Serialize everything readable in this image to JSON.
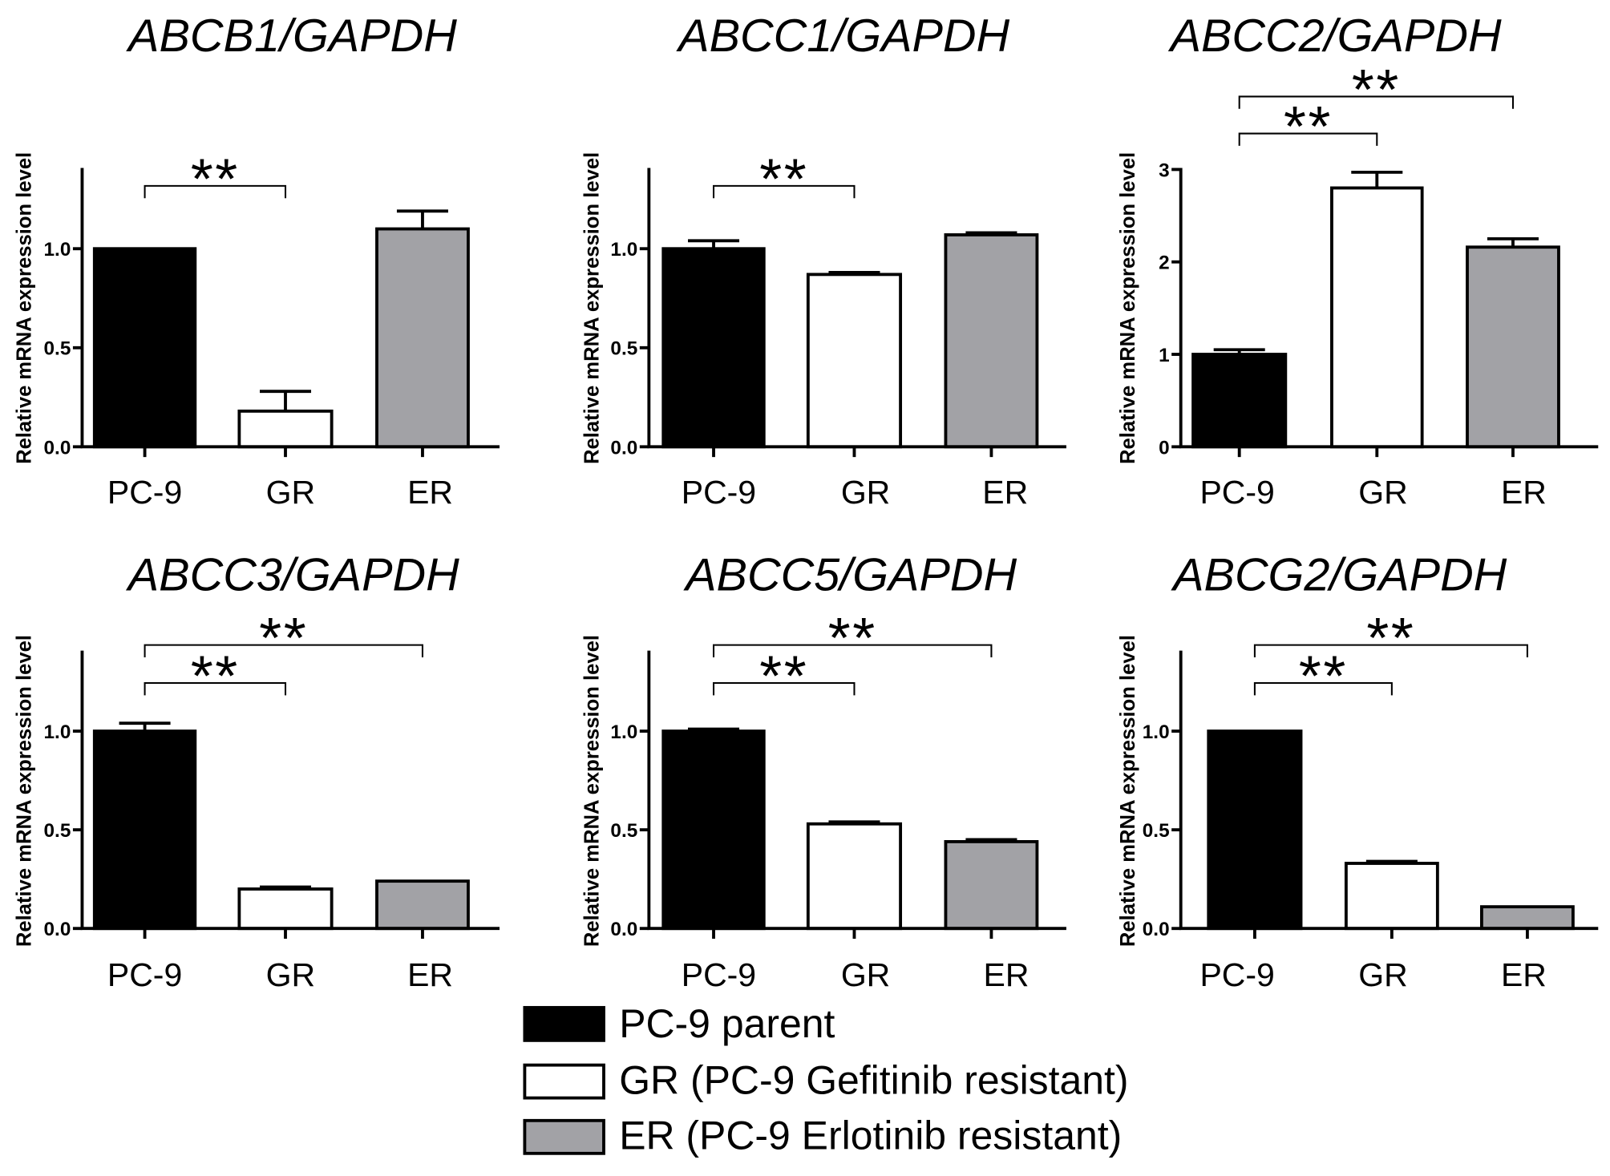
{
  "legend": {
    "position": "bottom-center",
    "entries": [
      {
        "label": "PC-9 parent",
        "color": "#000000"
      },
      {
        "label": "GR (PC-9 Gefitinib resistant)",
        "color": "#ffffff"
      },
      {
        "label": "ER (PC-9 Erlotinib resistant)",
        "color": "#a2a2a6"
      }
    ]
  },
  "chart_data": [
    {
      "type": "bar",
      "title": "ABCB1/GAPDH",
      "ylabel": "Relative mRNA expression level",
      "categories": [
        "PC-9",
        "GR",
        "ER"
      ],
      "values": [
        1.0,
        0.18,
        1.1
      ],
      "errors": [
        0,
        0.1,
        0.09
      ],
      "colors": [
        "#000000",
        "#ffffff",
        "#a2a2a6"
      ],
      "ylim": [
        0,
        1.4
      ],
      "yticks": [
        "0.0",
        "0.5",
        "1.0"
      ],
      "grid": false,
      "significance": [
        {
          "from": 0,
          "to": 1,
          "label": "**"
        }
      ]
    },
    {
      "type": "bar",
      "title": "ABCC1/GAPDH",
      "ylabel": "Relative mRNA expression level",
      "categories": [
        "PC-9",
        "GR",
        "ER"
      ],
      "values": [
        1.0,
        0.87,
        1.07
      ],
      "errors": [
        0.04,
        0.01,
        0.01
      ],
      "colors": [
        "#000000",
        "#ffffff",
        "#a2a2a6"
      ],
      "ylim": [
        0,
        1.4
      ],
      "yticks": [
        "0.0",
        "0.5",
        "1.0"
      ],
      "grid": false,
      "significance": [
        {
          "from": 0,
          "to": 1,
          "label": "**"
        }
      ]
    },
    {
      "type": "bar",
      "title": "ABCC2/GAPDH",
      "ylabel": "Relative mRNA expression level",
      "categories": [
        "PC-9",
        "GR",
        "ER"
      ],
      "values": [
        1.0,
        2.8,
        2.16
      ],
      "errors": [
        0.05,
        0.17,
        0.09
      ],
      "colors": [
        "#000000",
        "#ffffff",
        "#a2a2a6"
      ],
      "ylim": [
        0,
        3
      ],
      "yticks": [
        "0",
        "1",
        "2",
        "3"
      ],
      "grid": false,
      "significance": [
        {
          "from": 0,
          "to": 1,
          "label": "**"
        },
        {
          "from": 0,
          "to": 2,
          "label": "**"
        }
      ]
    },
    {
      "type": "bar",
      "title": "ABCC3/GAPDH",
      "ylabel": "Relative mRNA expression level",
      "categories": [
        "PC-9",
        "GR",
        "ER"
      ],
      "values": [
        1.0,
        0.2,
        0.24
      ],
      "errors": [
        0.04,
        0.01,
        0
      ],
      "colors": [
        "#000000",
        "#ffffff",
        "#a2a2a6"
      ],
      "ylim": [
        0,
        1.4
      ],
      "yticks": [
        "0.0",
        "0.5",
        "1.0"
      ],
      "grid": false,
      "significance": [
        {
          "from": 0,
          "to": 1,
          "label": "**"
        },
        {
          "from": 0,
          "to": 2,
          "label": "**"
        }
      ]
    },
    {
      "type": "bar",
      "title": "ABCC5/GAPDH",
      "ylabel": "Relative mRNA expression level",
      "categories": [
        "PC-9",
        "GR",
        "ER"
      ],
      "values": [
        1.0,
        0.53,
        0.44
      ],
      "errors": [
        0.01,
        0.01,
        0.01
      ],
      "colors": [
        "#000000",
        "#ffffff",
        "#a2a2a6"
      ],
      "ylim": [
        0,
        1.4
      ],
      "yticks": [
        "0.0",
        "0.5",
        "1.0"
      ],
      "grid": false,
      "significance": [
        {
          "from": 0,
          "to": 1,
          "label": "**"
        },
        {
          "from": 0,
          "to": 2,
          "label": "**"
        }
      ]
    },
    {
      "type": "bar",
      "title": "ABCG2/GAPDH",
      "ylabel": "Relative mRNA expression level",
      "categories": [
        "PC-9",
        "GR",
        "ER"
      ],
      "values": [
        1.0,
        0.33,
        0.11
      ],
      "errors": [
        0,
        0.01,
        0
      ],
      "colors": [
        "#000000",
        "#ffffff",
        "#a2a2a6"
      ],
      "ylim": [
        0,
        1.4
      ],
      "yticks": [
        "0.0",
        "0.5",
        "1.0"
      ],
      "grid": false,
      "significance": [
        {
          "from": 0,
          "to": 1,
          "label": "**"
        },
        {
          "from": 0,
          "to": 2,
          "label": "**"
        }
      ]
    }
  ]
}
